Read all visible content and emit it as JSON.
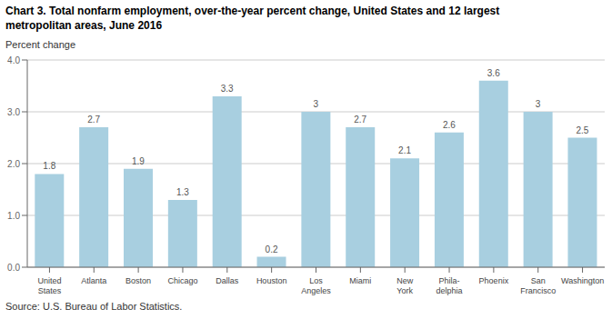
{
  "chart_data": {
    "type": "bar",
    "title": "Chart 3. Total nonfarm employment, over-the-year percent change, United States and 12 largest\nmetropolitan areas, June 2016",
    "ylabel": "Percent change",
    "source": "Source: U.S. Bureau of Labor Statistics.",
    "categories": [
      "United\nStates",
      "Atlanta",
      "Boston",
      "Chicago",
      "Dallas",
      "Houston",
      "Los\nAngeles",
      "Miami",
      "New\nYork",
      "Phila-\ndelphia",
      "Phoenix",
      "San\nFrancisco",
      "Washington"
    ],
    "values": [
      1.8,
      2.7,
      1.9,
      1.3,
      3.3,
      0.2,
      3.0,
      2.7,
      2.1,
      2.6,
      3.6,
      3.0,
      2.5
    ],
    "color": "#a8cfe0",
    "ylim": [
      0,
      4.0
    ],
    "yticks": [
      {
        "value": 0,
        "label": "0.0"
      },
      {
        "value": 1,
        "label": "1.0"
      },
      {
        "value": 2,
        "label": "2.0"
      },
      {
        "value": 3,
        "label": "3.0"
      },
      {
        "value": 4,
        "label": "4.0"
      }
    ],
    "grid": true,
    "data_labels": true
  }
}
